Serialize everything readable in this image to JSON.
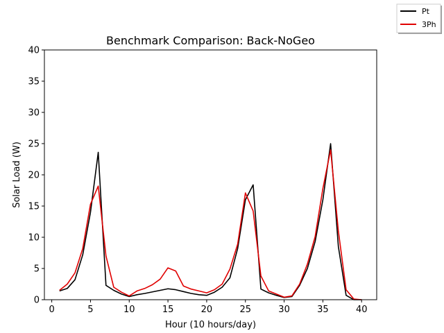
{
  "chart_data": {
    "type": "line",
    "title": "Benchmark Comparison: Back-NoGeo",
    "xlabel": "Hour (10 hours/day)",
    "ylabel": "Solar Load (W)",
    "xlim": [
      -0.95,
      41.95
    ],
    "ylim": [
      0,
      40
    ],
    "xticks": [
      0,
      5,
      10,
      15,
      20,
      25,
      30,
      35,
      40
    ],
    "yticks": [
      0,
      5,
      10,
      15,
      20,
      25,
      30,
      35,
      40
    ],
    "grid": false,
    "legend_position": "top-right",
    "series": [
      {
        "name": "Pt",
        "color": "#000000",
        "x": [
          1,
          2,
          3,
          4,
          5,
          6,
          7,
          8,
          9,
          10,
          11,
          12,
          13,
          14,
          15,
          16,
          17,
          18,
          19,
          20,
          21,
          22,
          23,
          24,
          25,
          26,
          27,
          28,
          29,
          30,
          31,
          32,
          33,
          34,
          35,
          36,
          37,
          38,
          39,
          40
        ],
        "y": [
          1.4,
          1.8,
          3.2,
          7.2,
          14.0,
          23.6,
          2.3,
          1.5,
          0.9,
          0.5,
          0.8,
          1.0,
          1.25,
          1.5,
          1.75,
          1.6,
          1.3,
          1.0,
          0.8,
          0.7,
          1.2,
          2.0,
          3.5,
          8.2,
          16.0,
          18.4,
          1.7,
          1.1,
          0.7,
          0.35,
          0.5,
          2.3,
          5.0,
          9.3,
          16.0,
          25.0,
          8.5,
          0.7,
          0.0,
          0.0
        ]
      },
      {
        "name": "3Ph",
        "color": "#e00000",
        "x": [
          1,
          2,
          3,
          4,
          5,
          6,
          7,
          8,
          9,
          10,
          11,
          12,
          13,
          14,
          15,
          16,
          17,
          18,
          19,
          20,
          21,
          22,
          23,
          24,
          25,
          26,
          27,
          28,
          29,
          30,
          31,
          32,
          33,
          34,
          35,
          36,
          37,
          38,
          39,
          40
        ],
        "y": [
          1.5,
          2.5,
          4.3,
          8.2,
          15.3,
          18.2,
          7.0,
          2.0,
          1.2,
          0.6,
          1.4,
          1.8,
          2.4,
          3.3,
          5.1,
          4.6,
          2.2,
          1.7,
          1.4,
          1.1,
          1.6,
          2.5,
          4.9,
          8.9,
          17.1,
          14.2,
          3.8,
          1.4,
          0.9,
          0.4,
          0.6,
          2.5,
          5.7,
          10.1,
          17.8,
          24.0,
          11.0,
          1.6,
          0.1,
          0.0
        ]
      }
    ]
  }
}
